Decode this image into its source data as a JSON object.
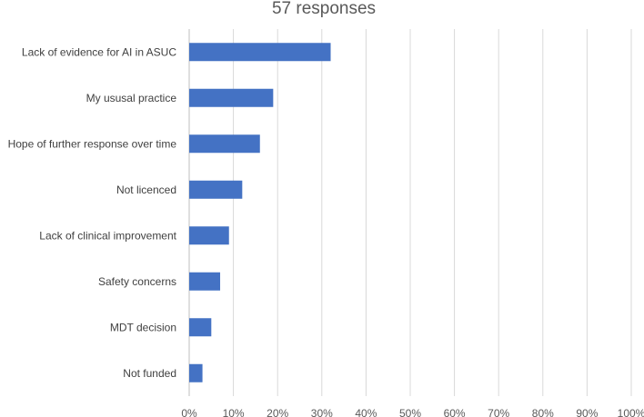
{
  "chart_data": {
    "type": "bar",
    "orientation": "horizontal",
    "title": "57 responses",
    "categories": [
      "Lack of evidence for AI in ASUC",
      "My ususal practice",
      "Hope of further response over time",
      "Not licenced",
      "Lack of clinical improvement",
      "Safety concerns",
      "MDT decision",
      "Not funded"
    ],
    "values": [
      32,
      19,
      16,
      12,
      9,
      7,
      5,
      3
    ],
    "xlim": [
      0,
      100
    ],
    "x_ticks": [
      "0%",
      "10%",
      "20%",
      "30%",
      "40%",
      "50%",
      "60%",
      "70%",
      "80%",
      "90%",
      "100%"
    ],
    "xlabel": "",
    "ylabel": "",
    "grid": true,
    "legend": "none",
    "bar_color": "#4472C4",
    "grid_color": "#D9D9D9"
  }
}
